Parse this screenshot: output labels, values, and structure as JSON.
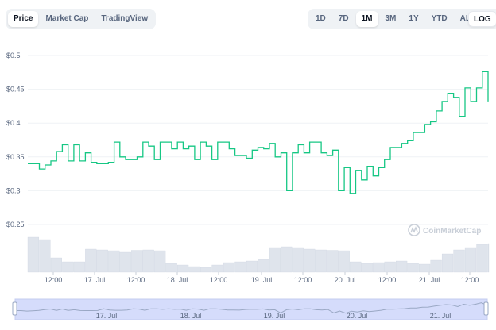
{
  "tabs_left": [
    {
      "label": "Price",
      "active": true
    },
    {
      "label": "Market Cap",
      "active": false
    },
    {
      "label": "TradingView",
      "active": false
    }
  ],
  "tabs_right": [
    {
      "label": "1D",
      "active": false
    },
    {
      "label": "7D",
      "active": false
    },
    {
      "label": "1M",
      "active": true
    },
    {
      "label": "3M",
      "active": false
    },
    {
      "label": "1Y",
      "active": false
    },
    {
      "label": "YTD",
      "active": false
    },
    {
      "label": "ALL",
      "active": false
    }
  ],
  "calendar_icon": "calendar-icon",
  "log_label": "LOG",
  "watermark": "CoinMarketCap",
  "colors": {
    "line": "#16c784",
    "volume": "#dfe4ec",
    "navigator_fill": "#d5dcfb",
    "navigator_line": "#9aa8c4"
  },
  "chart_data": {
    "type": "line",
    "title": "",
    "xlabel": "",
    "ylabel": "",
    "y_ticks": [
      "$0.5",
      "$0.45",
      "$0.4",
      "$0.35",
      "$0.3",
      "$0.25"
    ],
    "y_tick_values": [
      0.5,
      0.45,
      0.4,
      0.35,
      0.3,
      0.25
    ],
    "x_ticks": [
      "12:00",
      "17. Jul",
      "12:00",
      "18. Jul",
      "12:00",
      "19. Jul",
      "12:00",
      "20. Jul",
      "12:00",
      "21. Jul",
      "12:00"
    ],
    "navigator_ticks": [
      "17. Jul",
      "18. Jul",
      "19. Jul",
      "20. Jul",
      "21. Jul"
    ],
    "x_start_hours": -30,
    "x_end_hours": 130,
    "price": {
      "t": [
        -30,
        -28,
        -26,
        -24,
        -22,
        -20,
        -18,
        -16,
        -14,
        -12,
        -10,
        -8,
        -6,
        -4,
        -2,
        0,
        2,
        4,
        6,
        8,
        10,
        12,
        14,
        16,
        18,
        20,
        22,
        24,
        26,
        28,
        30,
        32,
        34,
        36,
        38,
        40,
        42,
        44,
        46,
        48,
        50,
        52,
        54,
        56,
        58,
        60,
        62,
        64,
        66,
        68,
        70,
        72,
        74,
        76,
        78,
        80,
        82,
        84,
        86,
        88,
        90,
        92,
        94,
        96,
        98,
        100,
        102,
        104,
        106,
        108,
        110,
        112,
        114,
        116,
        118,
        120,
        122,
        124,
        126,
        128,
        130
      ],
      "v": [
        0.34,
        0.34,
        0.332,
        0.338,
        0.344,
        0.358,
        0.368,
        0.344,
        0.368,
        0.344,
        0.356,
        0.342,
        0.34,
        0.34,
        0.342,
        0.372,
        0.35,
        0.346,
        0.346,
        0.35,
        0.372,
        0.366,
        0.346,
        0.372,
        0.372,
        0.362,
        0.372,
        0.362,
        0.366,
        0.346,
        0.372,
        0.366,
        0.346,
        0.372,
        0.372,
        0.362,
        0.352,
        0.352,
        0.348,
        0.36,
        0.364,
        0.362,
        0.37,
        0.35,
        0.356,
        0.3,
        0.356,
        0.368,
        0.356,
        0.372,
        0.372,
        0.356,
        0.352,
        0.36,
        0.3,
        0.334,
        0.296,
        0.33,
        0.316,
        0.336,
        0.322,
        0.334,
        0.346,
        0.364,
        0.364,
        0.37,
        0.374,
        0.386,
        0.386,
        0.398,
        0.402,
        0.418,
        0.432,
        0.444,
        0.438,
        0.41,
        0.452,
        0.432,
        0.452,
        0.476,
        0.432
      ]
    },
    "volume": {
      "t": [
        -30,
        -26,
        -22,
        -18,
        -14,
        -10,
        -6,
        -2,
        2,
        6,
        10,
        14,
        18,
        22,
        26,
        30,
        34,
        38,
        42,
        46,
        50,
        54,
        58,
        62,
        66,
        70,
        74,
        78,
        82,
        86,
        90,
        94,
        98,
        102,
        106,
        110,
        114,
        118,
        122,
        126,
        130
      ],
      "v": [
        0.88,
        0.82,
        0.36,
        0.26,
        0.26,
        0.58,
        0.56,
        0.54,
        0.5,
        0.55,
        0.56,
        0.54,
        0.22,
        0.18,
        0.14,
        0.12,
        0.18,
        0.24,
        0.26,
        0.28,
        0.32,
        0.62,
        0.64,
        0.62,
        0.58,
        0.56,
        0.55,
        0.54,
        0.26,
        0.22,
        0.24,
        0.26,
        0.28,
        0.22,
        0.2,
        0.3,
        0.46,
        0.56,
        0.62,
        0.7,
        0.72
      ]
    },
    "ylim": [
      0.25,
      0.5
    ],
    "grid": true,
    "legend": "none"
  }
}
